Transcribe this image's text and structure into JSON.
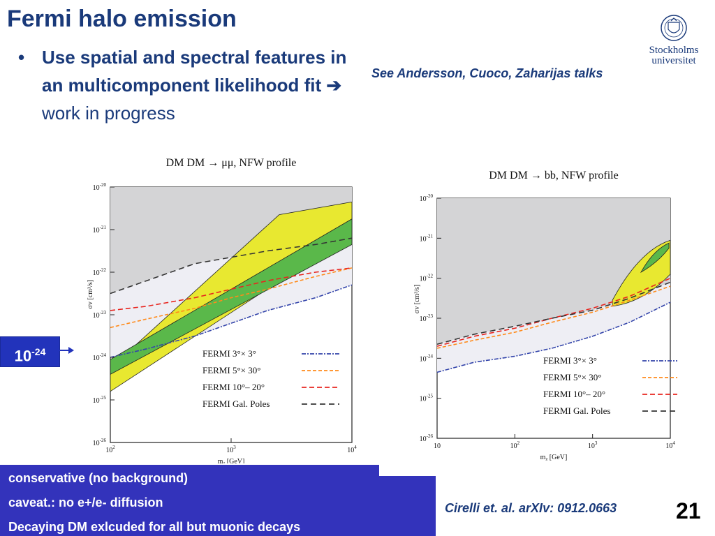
{
  "slide": {
    "title": "Fermi halo emission",
    "bullet_bold": "Use spatial and spectral features in an multicomponent likelihood fit",
    "bullet_arrow": "➔",
    "bullet_plain": "work in progress",
    "see_also": "See Andersson, Cuoco, Zaharijas talks",
    "marker_base": "10",
    "marker_exp": "-24",
    "bottom_lines": [
      "conservative (no background)",
      "caveat.: no e+/e- diffusion",
      "Decaying DM exlcuded for all but muonic decays"
    ],
    "citation": "Cirelli et. al. arXIv: 0912.0663",
    "page_number": "21",
    "logo_text": [
      "Stockholms",
      "universitet"
    ]
  },
  "chart_data": [
    {
      "type": "line",
      "title": "DM DM → μμ, NFW profile",
      "xlabel": "mᵪ [GeV]",
      "ylabel": "σv [cm³/s]",
      "x_scale": "log",
      "y_scale": "log",
      "xlim": [
        100,
        10000
      ],
      "ylim_exp": [
        -26,
        -20
      ],
      "x_ticks": [
        {
          "v": 100,
          "b": "10",
          "e": "2"
        },
        {
          "v": 1000,
          "b": "10",
          "e": "3"
        },
        {
          "v": 10000,
          "b": "10",
          "e": "4"
        }
      ],
      "y_ticks": [
        {
          "e": "-20"
        },
        {
          "e": "-21"
        },
        {
          "e": "-22"
        },
        {
          "e": "-23"
        },
        {
          "e": "-24"
        },
        {
          "e": "-25"
        },
        {
          "e": "-26"
        }
      ],
      "series": [
        {
          "name": "FERMI 3°× 3°",
          "color": "#3344aa",
          "dash": "6,2,2,2",
          "x": [
            100,
            200,
            500,
            1000,
            2000,
            5000,
            10000
          ],
          "y": [
            -24.0,
            -23.8,
            -23.5,
            -23.2,
            -22.9,
            -22.6,
            -22.3
          ]
        },
        {
          "name": "FERMI 5°× 30°",
          "color": "#ff8a1a",
          "dash": "5,3",
          "x": [
            100,
            200,
            500,
            1000,
            2000,
            5000,
            10000
          ],
          "y": [
            -23.3,
            -23.1,
            -22.85,
            -22.6,
            -22.4,
            -22.1,
            -21.9
          ]
        },
        {
          "name": "FERMI 10°– 20°",
          "color": "#e8251f",
          "dash": "7,4",
          "x": [
            100,
            200,
            500,
            1000,
            2000,
            5000,
            10000
          ],
          "y": [
            -22.9,
            -22.8,
            -22.6,
            -22.4,
            -22.2,
            -22.0,
            -21.9
          ]
        },
        {
          "name": "FERMI Gal. Poles",
          "color": "#333333",
          "dash": "8,5",
          "x": [
            100,
            200,
            500,
            1000,
            2000,
            5000,
            10000
          ],
          "y": [
            -22.5,
            -22.2,
            -21.8,
            -21.65,
            -21.5,
            -21.35,
            -21.2
          ]
        }
      ],
      "legend": "bottom-right"
    },
    {
      "type": "line",
      "title": "DM DM → bb, NFW profile",
      "xlabel": "mᵪ [GeV]",
      "ylabel": "σv [cm³/s]",
      "x_scale": "log",
      "y_scale": "log",
      "xlim": [
        10,
        10000
      ],
      "ylim_exp": [
        -26,
        -20
      ],
      "x_ticks": [
        {
          "v": 10,
          "b": "10",
          "e": ""
        },
        {
          "v": 100,
          "b": "10",
          "e": "2"
        },
        {
          "v": 1000,
          "b": "10",
          "e": "3"
        },
        {
          "v": 10000,
          "b": "10",
          "e": "4"
        }
      ],
      "y_ticks": [
        {
          "e": "-20"
        },
        {
          "e": "-21"
        },
        {
          "e": "-22"
        },
        {
          "e": "-23"
        },
        {
          "e": "-24"
        },
        {
          "e": "-25"
        },
        {
          "e": "-26"
        }
      ],
      "series": [
        {
          "name": "FERMI 3°× 3°",
          "color": "#3344aa",
          "dash": "6,2,2,2",
          "x": [
            10,
            30,
            100,
            300,
            1000,
            3000,
            10000
          ],
          "y": [
            -24.35,
            -24.1,
            -23.95,
            -23.75,
            -23.45,
            -23.1,
            -22.6
          ]
        },
        {
          "name": "FERMI 5°× 30°",
          "color": "#ff8a1a",
          "dash": "5,3",
          "x": [
            10,
            30,
            100,
            300,
            1000,
            3000,
            10000
          ],
          "y": [
            -23.75,
            -23.55,
            -23.35,
            -23.1,
            -22.85,
            -22.55,
            -22.2
          ]
        },
        {
          "name": "FERMI 10°– 20°",
          "color": "#e8251f",
          "dash": "7,4",
          "x": [
            10,
            30,
            100,
            300,
            1000,
            3000,
            10000
          ],
          "y": [
            -23.7,
            -23.45,
            -23.25,
            -23.0,
            -22.75,
            -22.45,
            -22.0
          ]
        },
        {
          "name": "FERMI Gal. Poles",
          "color": "#333333",
          "dash": "8,5",
          "x": [
            10,
            30,
            100,
            300,
            1000,
            3000,
            10000
          ],
          "y": [
            -23.65,
            -23.4,
            -23.2,
            -23.0,
            -22.8,
            -22.5,
            -22.1
          ]
        }
      ],
      "legend": "bottom-right"
    }
  ]
}
